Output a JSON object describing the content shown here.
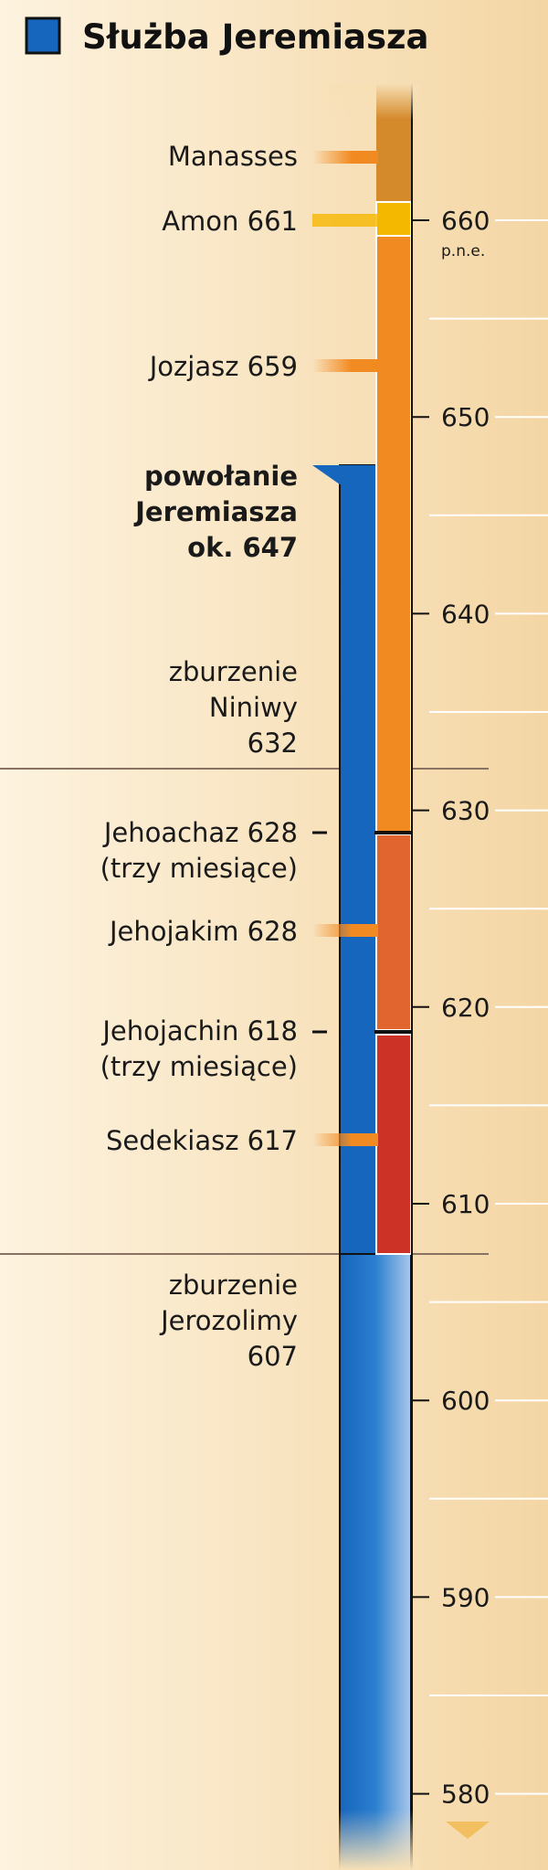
{
  "header": {
    "title": "Służba Jeremiasza"
  },
  "events": [
    {
      "lines": [
        "Manasses"
      ]
    },
    {
      "lines": [
        "Amon 661"
      ]
    },
    {
      "lines": [
        "Jozjasz 659"
      ]
    },
    {
      "lines": [
        "powołanie",
        "Jeremiasza",
        "ok. 647"
      ]
    },
    {
      "lines": [
        "zburzenie",
        "Niniwy",
        "632"
      ]
    },
    {
      "lines": [
        "Jehoachaz 628",
        "(trzy miesiące)"
      ]
    },
    {
      "lines": [
        "Jehojakim 628"
      ]
    },
    {
      "lines": [
        "Jehojachin 618",
        "(trzy miesiące)"
      ]
    },
    {
      "lines": [
        "Sedekiasz 617"
      ]
    },
    {
      "lines": [
        "zburzenie",
        "Jerozolimy",
        "607"
      ]
    }
  ],
  "axis": {
    "ticks": [
      "660",
      "650",
      "640",
      "630",
      "620",
      "610",
      "600",
      "590",
      "580"
    ],
    "era": "p.n.e."
  }
}
